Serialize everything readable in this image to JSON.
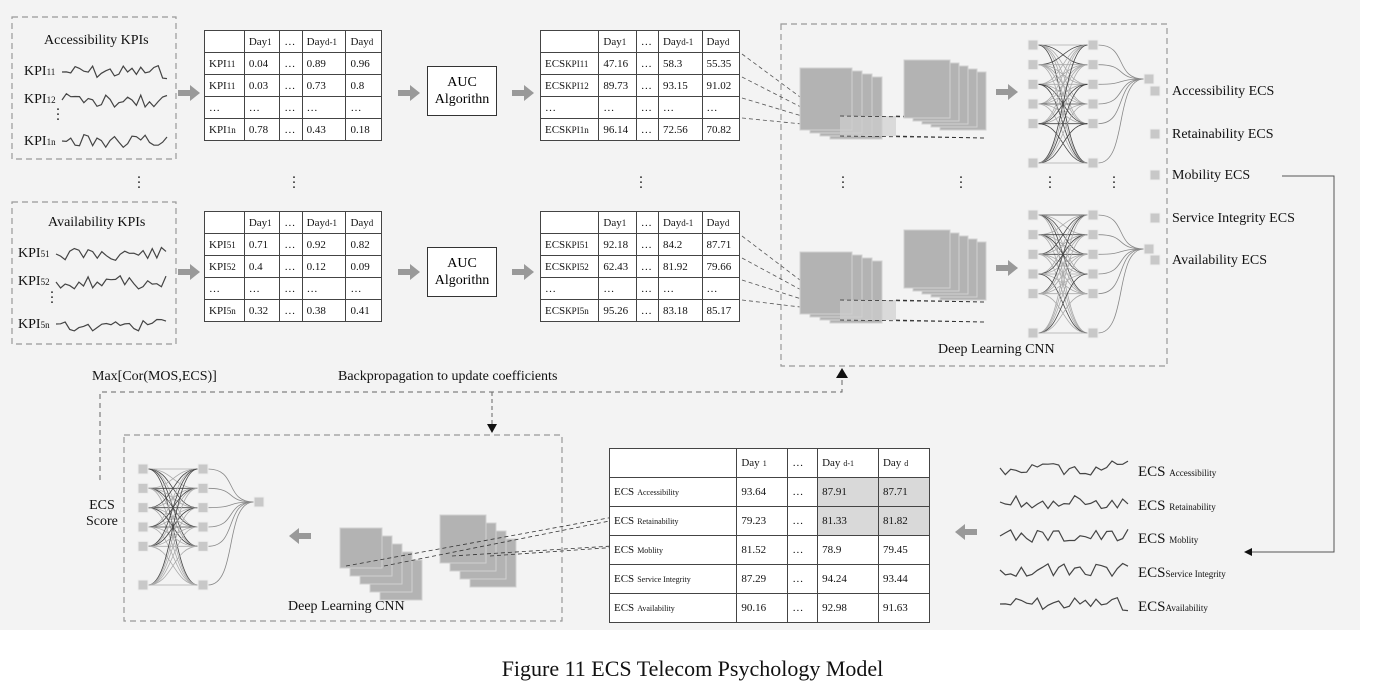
{
  "caption": "Figure 11 ECS Telecom Psychology Model",
  "kpi_groups": [
    {
      "title": "Accessibility KPIs",
      "kpis": [
        {
          "base": "KPI",
          "sub": "11"
        },
        {
          "base": "KPI",
          "sub": "12"
        },
        {
          "base": "KPI",
          "sub": "1n"
        }
      ],
      "table": {
        "header": [
          "Day",
          "…",
          "Day",
          "Day"
        ],
        "header_subs": [
          "1",
          "",
          "d-1",
          "d"
        ],
        "rows": [
          {
            "label": "KPI",
            "sub": "11",
            "values": [
              "0.04",
              "…",
              "0.89",
              "0.96"
            ]
          },
          {
            "label": "KPI",
            "sub": "11",
            "values": [
              "0.03",
              "…",
              "0.73",
              "0.8"
            ]
          },
          {
            "label": "…",
            "sub": "",
            "values": [
              "…",
              "…",
              "…",
              "…"
            ]
          },
          {
            "label": "KPI",
            "sub": "1n",
            "values": [
              "0.78",
              "…",
              "0.43",
              "0.18"
            ]
          }
        ]
      },
      "algorithm": [
        "AUC",
        "Algorithn"
      ],
      "ecs_table": {
        "header": [
          "Day",
          "…",
          "Day",
          "Day"
        ],
        "header_subs": [
          "1",
          "",
          "d-1",
          "d"
        ],
        "rows": [
          {
            "label": "ECS",
            "sub": "KPI11",
            "values": [
              "47.16",
              "…",
              "58.3",
              "55.35"
            ]
          },
          {
            "label": "ECS",
            "sub": "KPI12",
            "values": [
              "89.73",
              "…",
              "93.15",
              "91.02"
            ]
          },
          {
            "label": "…",
            "sub": "",
            "values": [
              "…",
              "…",
              "…",
              "…"
            ]
          },
          {
            "label": "ECS",
            "sub": "KPI1n",
            "values": [
              "96.14",
              "…",
              "72.56",
              "70.82"
            ]
          }
        ]
      }
    },
    {
      "title": "Availability KPIs",
      "kpis": [
        {
          "base": "KPI",
          "sub": "51"
        },
        {
          "base": "KPI",
          "sub": "52"
        },
        {
          "base": "KPI",
          "sub": "5n"
        }
      ],
      "table": {
        "header": [
          "Day",
          "…",
          "Day",
          "Day"
        ],
        "header_subs": [
          "1",
          "",
          "d-1",
          "d"
        ],
        "rows": [
          {
            "label": "KPI",
            "sub": "51",
            "values": [
              "0.71",
              "…",
              "0.92",
              "0.82"
            ]
          },
          {
            "label": "KPI",
            "sub": "52",
            "values": [
              "0.4",
              "…",
              "0.12",
              "0.09"
            ]
          },
          {
            "label": "…",
            "sub": "",
            "values": [
              "…",
              "…",
              "…",
              "…"
            ]
          },
          {
            "label": "KPI",
            "sub": "5n",
            "values": [
              "0.32",
              "…",
              "0.38",
              "0.41"
            ]
          }
        ]
      },
      "algorithm": [
        "AUC",
        "Algorithn"
      ],
      "ecs_table": {
        "header": [
          "Day",
          "…",
          "Day",
          "Day"
        ],
        "header_subs": [
          "1",
          "",
          "d-1",
          "d"
        ],
        "rows": [
          {
            "label": "ECS",
            "sub": "KPI51",
            "values": [
              "92.18",
              "…",
              "84.2",
              "87.71"
            ]
          },
          {
            "label": "ECS",
            "sub": "KPI52",
            "values": [
              "62.43",
              "…",
              "81.92",
              "79.66"
            ]
          },
          {
            "label": "…",
            "sub": "",
            "values": [
              "…",
              "…",
              "…",
              "…"
            ]
          },
          {
            "label": "ECS",
            "sub": "KPI5n",
            "values": [
              "95.26",
              "…",
              "83.18",
              "85.17"
            ]
          }
        ]
      }
    }
  ],
  "cnn_top_label": "Deep Learning CNN",
  "cnn_bottom_label": "Deep Learning CNN",
  "ecs_outputs": [
    "Accessibility ECS",
    "Retainability ECS",
    "Mobility ECS",
    "Service Integrity ECS",
    "Availability ECS"
  ],
  "feedback": {
    "objective": "Max[Cor(MOS,ECS)]",
    "backprop": "Backpropagation to update coefficients",
    "score_label": [
      "ECS",
      "Score"
    ]
  },
  "final_table": {
    "header": [
      "Day",
      "…",
      "Day",
      "Day"
    ],
    "header_subs": [
      "1",
      "",
      "d-1",
      "d"
    ],
    "rows": [
      {
        "label": "ECS",
        "sub": "Accessibility",
        "values": [
          "93.64",
          "…",
          "87.91",
          "87.71"
        ]
      },
      {
        "label": "ECS",
        "sub": "Retainability",
        "values": [
          "79.23",
          "…",
          "81.33",
          "81.82"
        ]
      },
      {
        "label": "ECS",
        "sub": "Moblity",
        "values": [
          "81.52",
          "…",
          "78.9",
          "79.45"
        ]
      },
      {
        "label": "ECS",
        "sub": "Service Integrity",
        "values": [
          "87.29",
          "…",
          "94.24",
          "93.44"
        ]
      },
      {
        "label": "ECS",
        "sub": "Availability",
        "values": [
          "90.16",
          "…",
          "92.98",
          "91.63"
        ]
      }
    ]
  },
  "signal_legend": [
    {
      "base": "ECS",
      "sub": "Accessibility"
    },
    {
      "base": "ECS",
      "sub": "Retainability"
    },
    {
      "base": "ECS",
      "sub": "Moblity"
    },
    {
      "base": "ECS",
      "sub": "Service Integrity"
    },
    {
      "base": "ECS",
      "sub": "Availability"
    }
  ]
}
